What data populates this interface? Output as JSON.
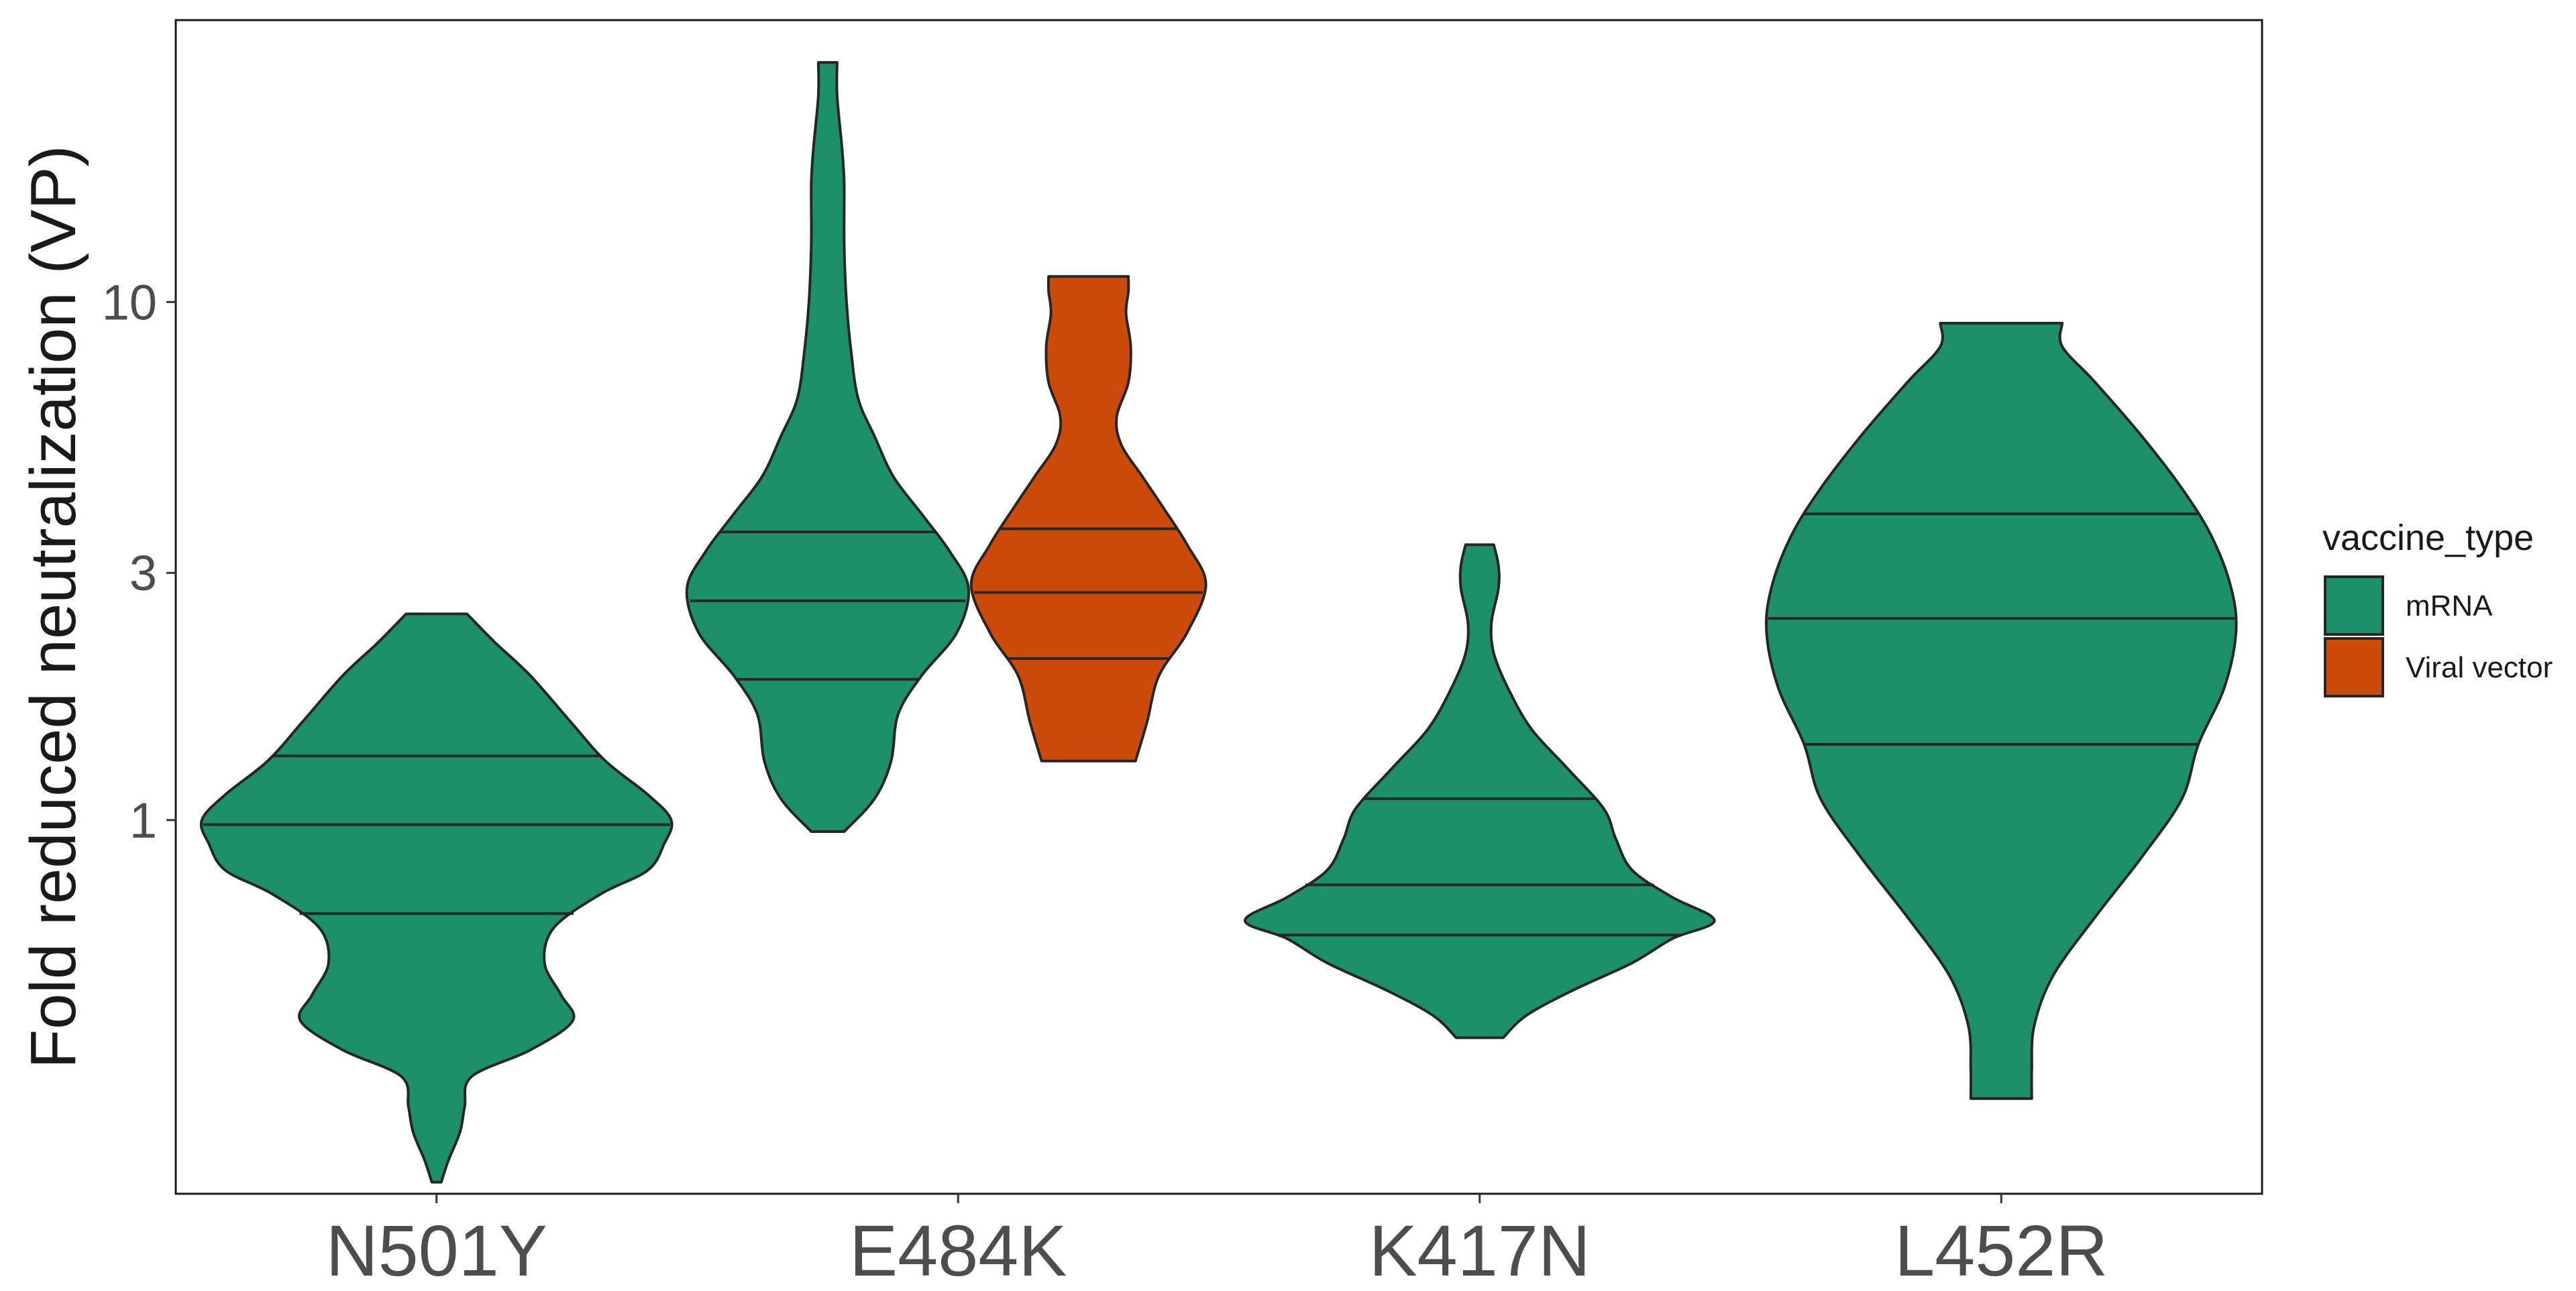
{
  "chart_data": {
    "type": "violin",
    "title": "",
    "xlabel": "",
    "ylabel": "Fold reduced neutralization (VP)",
    "y_scale": "log10",
    "ylim": [
      0.19,
      35
    ],
    "y_ticks": [
      {
        "value": 1,
        "label": "1"
      },
      {
        "value": 3,
        "label": "3"
      },
      {
        "value": 10,
        "label": "10"
      }
    ],
    "categories": [
      "N501Y",
      "E484K",
      "K417N",
      "L452R"
    ],
    "grid": false,
    "legend": {
      "title": "vaccine_type",
      "position": "right",
      "entries": [
        {
          "label": "mRNA",
          "color": "#1b9069"
        },
        {
          "label": "Viral vector",
          "color": "#cc4a0a"
        }
      ]
    },
    "series": [
      {
        "category": "N501Y",
        "group": "mRNA",
        "color": "#1b9069",
        "min": 0.2,
        "max": 2.5,
        "quantiles": [
          0.66,
          0.98,
          1.33
        ],
        "density": [
          [
            0.2,
            0.02
          ],
          [
            0.22,
            0.05
          ],
          [
            0.25,
            0.1
          ],
          [
            0.28,
            0.12
          ],
          [
            0.32,
            0.15
          ],
          [
            0.36,
            0.4
          ],
          [
            0.41,
            0.58
          ],
          [
            0.46,
            0.53
          ],
          [
            0.53,
            0.46
          ],
          [
            0.62,
            0.5
          ],
          [
            0.72,
            0.7
          ],
          [
            0.8,
            0.9
          ],
          [
            0.9,
            0.97
          ],
          [
            1.0,
            1.0
          ],
          [
            1.12,
            0.9
          ],
          [
            1.3,
            0.72
          ],
          [
            1.55,
            0.57
          ],
          [
            1.9,
            0.4
          ],
          [
            2.2,
            0.25
          ],
          [
            2.5,
            0.13
          ]
        ]
      },
      {
        "category": "E484K",
        "group": "mRNA",
        "color": "#1b9069",
        "min": 0.95,
        "max": 29,
        "quantiles": [
          1.87,
          2.65,
          3.6
        ],
        "density": [
          [
            0.95,
            0.07
          ],
          [
            1.1,
            0.2
          ],
          [
            1.3,
            0.27
          ],
          [
            1.6,
            0.3
          ],
          [
            1.9,
            0.4
          ],
          [
            2.3,
            0.55
          ],
          [
            2.8,
            0.6
          ],
          [
            3.3,
            0.52
          ],
          [
            3.9,
            0.4
          ],
          [
            4.6,
            0.28
          ],
          [
            5.5,
            0.2
          ],
          [
            6.5,
            0.13
          ],
          [
            8.0,
            0.1
          ],
          [
            10.0,
            0.08
          ],
          [
            13.0,
            0.07
          ],
          [
            17.0,
            0.07
          ],
          [
            20.0,
            0.06
          ],
          [
            25.0,
            0.04
          ],
          [
            29.0,
            0.04
          ]
        ]
      },
      {
        "category": "E484K",
        "group": "Viral vector",
        "color": "#cc4a0a",
        "min": 1.3,
        "max": 11.2,
        "quantiles": [
          2.05,
          2.75,
          3.65
        ],
        "density": [
          [
            1.3,
            0.2
          ],
          [
            1.55,
            0.25
          ],
          [
            1.9,
            0.3
          ],
          [
            2.3,
            0.42
          ],
          [
            2.85,
            0.5
          ],
          [
            3.4,
            0.42
          ],
          [
            4.0,
            0.32
          ],
          [
            4.6,
            0.23
          ],
          [
            5.3,
            0.14
          ],
          [
            6.0,
            0.12
          ],
          [
            7.0,
            0.17
          ],
          [
            8.2,
            0.18
          ],
          [
            9.5,
            0.16
          ],
          [
            10.5,
            0.17
          ],
          [
            11.2,
            0.17
          ]
        ]
      },
      {
        "category": "K417N",
        "group": "mRNA",
        "color": "#1b9069",
        "min": 0.38,
        "max": 3.4,
        "quantiles": [
          0.6,
          0.75,
          1.1
        ],
        "density": [
          [
            0.38,
            0.1
          ],
          [
            0.42,
            0.2
          ],
          [
            0.47,
            0.4
          ],
          [
            0.53,
            0.65
          ],
          [
            0.59,
            0.82
          ],
          [
            0.64,
            1.0
          ],
          [
            0.71,
            0.82
          ],
          [
            0.8,
            0.65
          ],
          [
            0.92,
            0.58
          ],
          [
            1.05,
            0.53
          ],
          [
            1.25,
            0.38
          ],
          [
            1.5,
            0.22
          ],
          [
            1.8,
            0.12
          ],
          [
            2.1,
            0.06
          ],
          [
            2.4,
            0.05
          ],
          [
            2.8,
            0.08
          ],
          [
            3.1,
            0.08
          ],
          [
            3.4,
            0.06
          ]
        ]
      },
      {
        "category": "L452R",
        "group": "mRNA",
        "color": "#1b9069",
        "min": 0.29,
        "max": 9.1,
        "quantiles": [
          1.4,
          2.45,
          3.9
        ],
        "density": [
          [
            0.29,
            0.13
          ],
          [
            0.33,
            0.13
          ],
          [
            0.4,
            0.14
          ],
          [
            0.5,
            0.22
          ],
          [
            0.65,
            0.4
          ],
          [
            0.85,
            0.6
          ],
          [
            1.1,
            0.77
          ],
          [
            1.4,
            0.84
          ],
          [
            1.8,
            0.95
          ],
          [
            2.3,
            1.0
          ],
          [
            2.8,
            0.98
          ],
          [
            3.5,
            0.9
          ],
          [
            4.3,
            0.78
          ],
          [
            5.5,
            0.6
          ],
          [
            7.0,
            0.4
          ],
          [
            8.2,
            0.26
          ],
          [
            9.1,
            0.26
          ]
        ]
      }
    ]
  }
}
